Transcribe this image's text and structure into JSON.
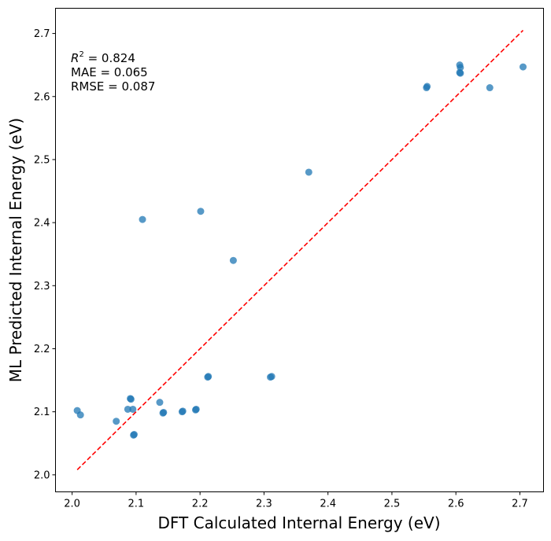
{
  "chart_data": {
    "type": "scatter",
    "title": "",
    "xlabel": "DFT Calculated Internal Energy (eV)",
    "ylabel": "ML Predicted Internal Energy (eV)",
    "xlim": [
      1.974,
      2.737
    ],
    "ylim": [
      1.973,
      2.74
    ],
    "xticks": [
      "2.0",
      "2.1",
      "2.2",
      "2.3",
      "2.4",
      "2.5",
      "2.6",
      "2.7"
    ],
    "yticks": [
      "2.0",
      "2.1",
      "2.2",
      "2.3",
      "2.4",
      "2.5",
      "2.6",
      "2.7"
    ],
    "grid": false,
    "point_color": "#1f77b4",
    "line_color": "#ff0000",
    "reference_line": {
      "style": "dashed",
      "x": [
        2.008,
        2.705
      ],
      "y": [
        2.008,
        2.705
      ]
    },
    "stats": {
      "r2_label": "R",
      "r2_superscript": "2",
      "r2_value": " = 0.824",
      "mae": "MAE = 0.065",
      "rmse": "RMSE = 0.087"
    },
    "points": [
      {
        "x": 2.008,
        "y": 2.102
      },
      {
        "x": 2.013,
        "y": 2.095
      },
      {
        "x": 2.069,
        "y": 2.085
      },
      {
        "x": 2.087,
        "y": 2.104
      },
      {
        "x": 2.091,
        "y": 2.121
      },
      {
        "x": 2.092,
        "y": 2.12
      },
      {
        "x": 2.095,
        "y": 2.104
      },
      {
        "x": 2.096,
        "y": 2.063
      },
      {
        "x": 2.097,
        "y": 2.064
      },
      {
        "x": 2.11,
        "y": 2.405
      },
      {
        "x": 2.137,
        "y": 2.115
      },
      {
        "x": 2.142,
        "y": 2.098
      },
      {
        "x": 2.143,
        "y": 2.099
      },
      {
        "x": 2.172,
        "y": 2.1
      },
      {
        "x": 2.173,
        "y": 2.101
      },
      {
        "x": 2.193,
        "y": 2.103
      },
      {
        "x": 2.194,
        "y": 2.104
      },
      {
        "x": 2.201,
        "y": 2.418
      },
      {
        "x": 2.212,
        "y": 2.155
      },
      {
        "x": 2.213,
        "y": 2.156
      },
      {
        "x": 2.252,
        "y": 2.34
      },
      {
        "x": 2.31,
        "y": 2.155
      },
      {
        "x": 2.312,
        "y": 2.156
      },
      {
        "x": 2.37,
        "y": 2.48
      },
      {
        "x": 2.554,
        "y": 2.614
      },
      {
        "x": 2.555,
        "y": 2.616
      },
      {
        "x": 2.606,
        "y": 2.65
      },
      {
        "x": 2.607,
        "y": 2.646
      },
      {
        "x": 2.606,
        "y": 2.638
      },
      {
        "x": 2.607,
        "y": 2.637
      },
      {
        "x": 2.653,
        "y": 2.614
      },
      {
        "x": 2.705,
        "y": 2.647
      }
    ]
  }
}
